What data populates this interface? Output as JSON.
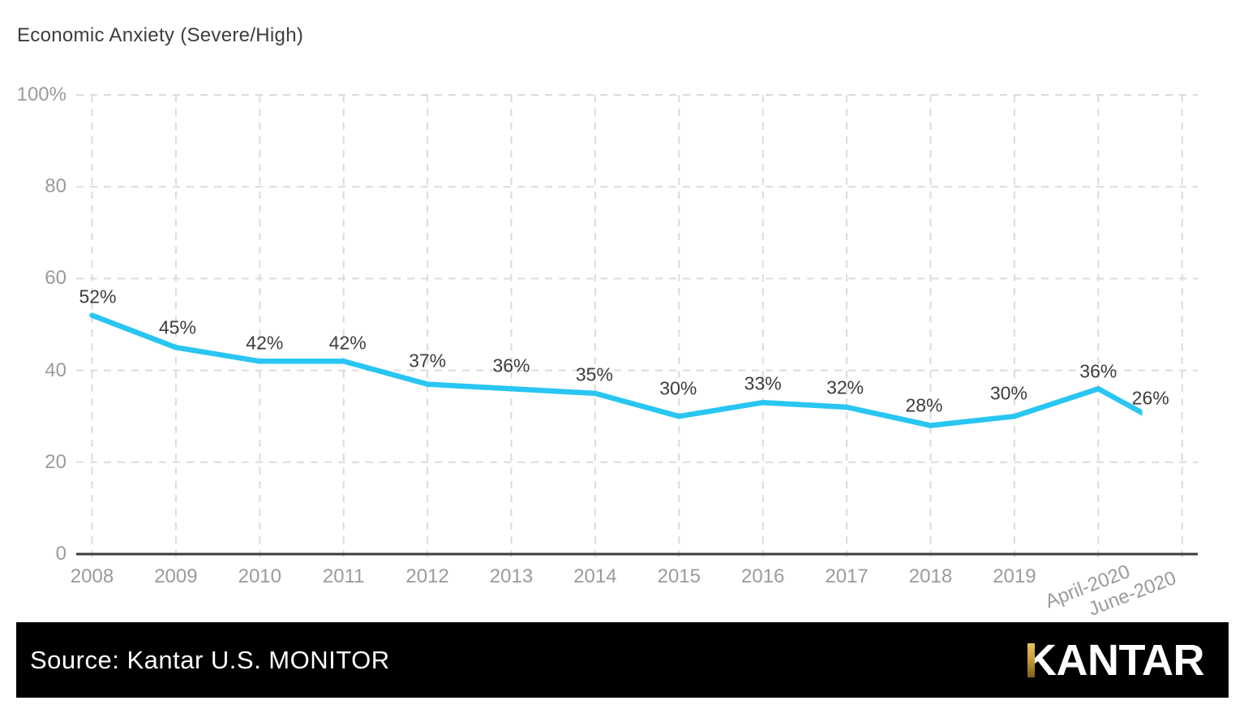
{
  "chart_data": {
    "type": "line",
    "title": "Economic Anxiety (Severe/High)",
    "categories": [
      "2008",
      "2009",
      "2010",
      "2011",
      "2012",
      "2013",
      "2014",
      "2015",
      "2016",
      "2017",
      "2018",
      "2019",
      "April-2020",
      "June-2020"
    ],
    "values": [
      52,
      45,
      42,
      42,
      37,
      36,
      35,
      30,
      33,
      32,
      28,
      30,
      36,
      26
    ],
    "point_labels": [
      "52%",
      "45%",
      "42%",
      "42%",
      "37%",
      "36%",
      "35%",
      "30%",
      "33%",
      "32%",
      "28%",
      "30%",
      "36%",
      "26%"
    ],
    "y_ticks": [
      "100%",
      "80",
      "60",
      "40",
      "20",
      "0"
    ],
    "ylim": [
      0,
      100
    ],
    "xlabel": "",
    "ylabel": "",
    "grid": "dashed",
    "legend": "none",
    "line_color": "#29C5F3",
    "grid_color": "#dbdbdb",
    "axis_color": "#3c3c3c",
    "tick_label_color": "#9b9b9b",
    "data_label_color": "#3d3d3d"
  },
  "footer": {
    "source_label": "Source: Kantar U.S. MONITOR",
    "logo_text": "KANTAR",
    "bar_color": "#000000",
    "logo_accent_top": "#e6c35c",
    "logo_accent_mid": "#c79f3a",
    "logo_accent_bottom": "#7d601c"
  }
}
